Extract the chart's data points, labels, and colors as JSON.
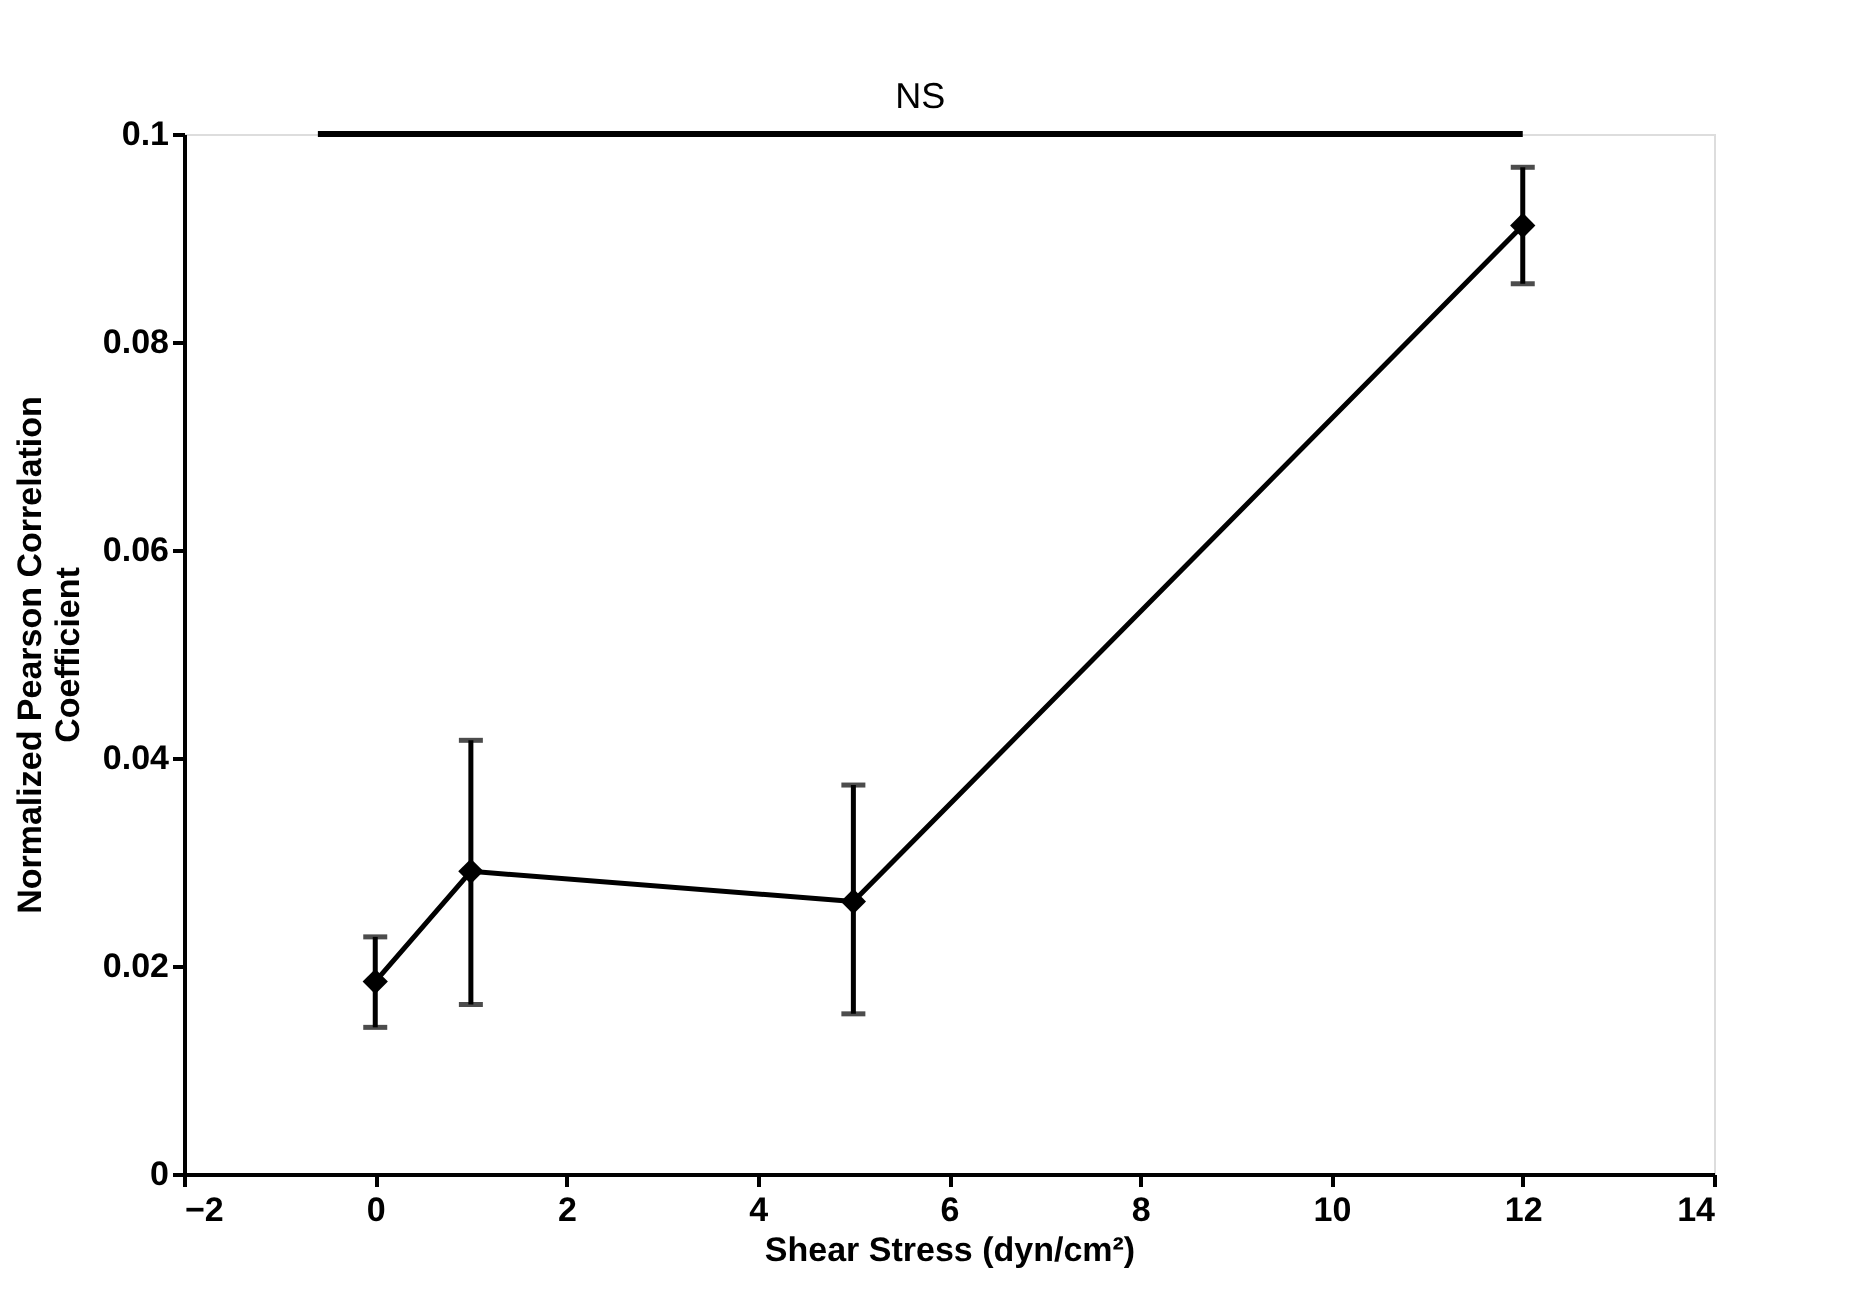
{
  "chart_data": {
    "type": "line",
    "xlabel": "Shear Stress (dyn/cm²)",
    "ylabel": "Normalized Pearson Correlation Coefficient",
    "x": [
      0,
      1,
      5,
      12
    ],
    "series": [
      {
        "color": "#000000",
        "values": [
          0.0185,
          0.0291,
          0.0262,
          0.0912
        ],
        "errors": [
          [
            0.0141,
            0.0228
          ],
          [
            0.0163,
            0.0417
          ],
          [
            0.0154,
            0.0374
          ],
          [
            0.0856,
            0.0968
          ]
        ]
      }
    ],
    "xlim": [
      -2,
      14
    ],
    "xticks": [
      -2,
      0,
      2,
      4,
      6,
      8,
      10,
      12,
      14
    ],
    "ylim": [
      0,
      0.1
    ],
    "yticks": [
      0,
      0.02,
      0.04,
      0.06,
      0.08,
      0.1
    ],
    "annotations": [
      "NS"
    ],
    "marker": "diamond",
    "line_style": "solid",
    "grid": false
  }
}
